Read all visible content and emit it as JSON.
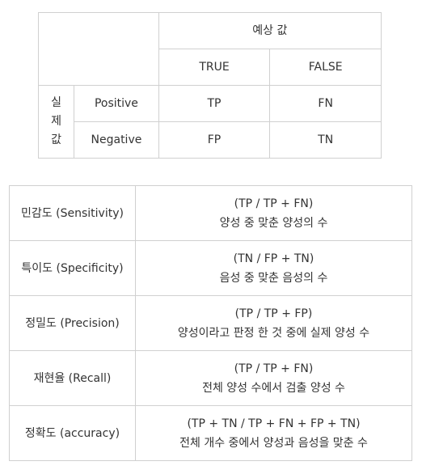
{
  "confusion_matrix": {
    "predicted_header": "예상 값",
    "actual_header": [
      "실",
      "제",
      "값"
    ],
    "predicted_columns": [
      "TRUE",
      "FALSE"
    ],
    "rows": [
      {
        "label": "Positive",
        "cells": [
          "TP",
          "FN"
        ]
      },
      {
        "label": "Negative",
        "cells": [
          "FP",
          "TN"
        ]
      }
    ]
  },
  "metrics": [
    {
      "name": "민감도 (Sensitivity)",
      "formula": "(TP / TP + FN)",
      "description": "양성 중 맞춘 양성의 수"
    },
    {
      "name": "특이도 (Specificity)",
      "formula": "(TN / FP + TN)",
      "description": "음성 중 맞춘 음성의 수"
    },
    {
      "name": "정밀도 (Precision)",
      "formula": "(TP / TP + FP)",
      "description": "양성이라고 판정 한 것 중에 실제 양성 수"
    },
    {
      "name": "재현율 (Recall)",
      "formula": "(TP / TP + FN)",
      "description": "전체 양성 수에서 검출 양성 수"
    },
    {
      "name": "정확도 (accuracy)",
      "formula": "(TP + TN / TP + FN + FP + TN)",
      "description": "전체 개수 중에서 양성과 음성을 맞춘 수"
    }
  ]
}
